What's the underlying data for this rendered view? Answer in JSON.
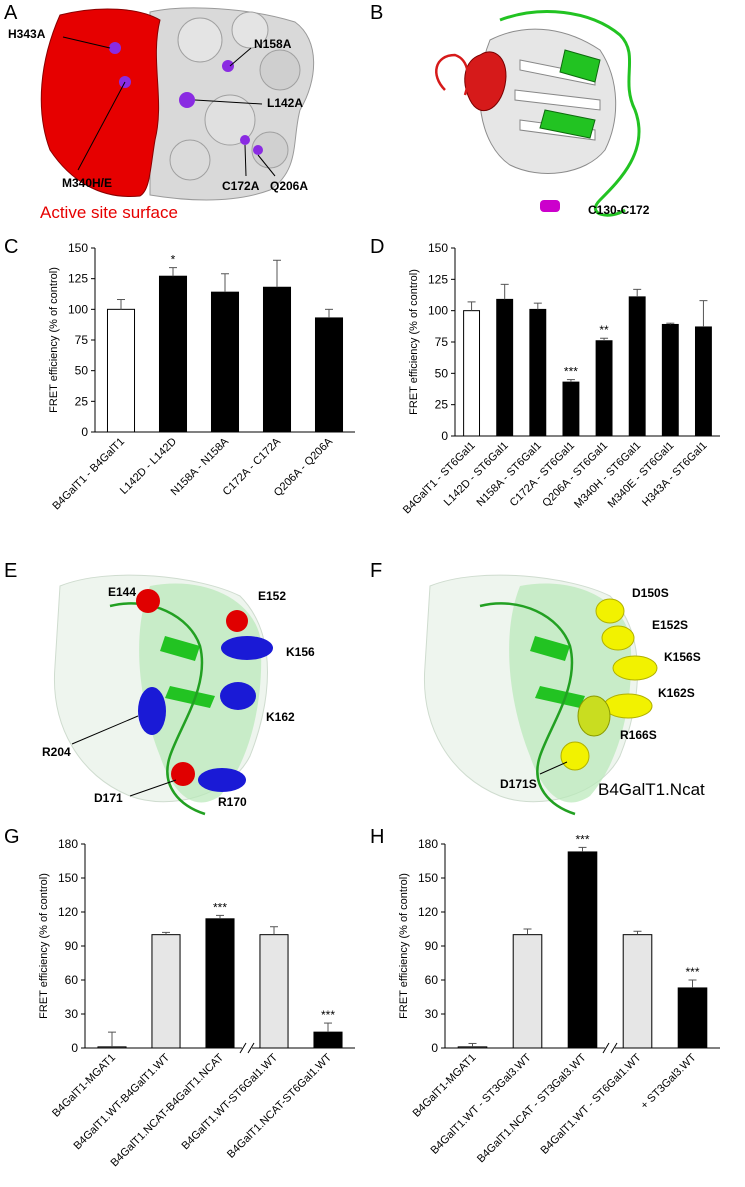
{
  "panels": {
    "A": {
      "letter": "A",
      "labels": [
        "H343A",
        "N158A",
        "L142A",
        "M340H/E",
        "C172A",
        "Q206A"
      ],
      "caption": "Active site surface",
      "colors": {
        "active": "#e60000",
        "surface": "#d8d8d8",
        "mutation": "#8a2be2"
      }
    },
    "B": {
      "letter": "B",
      "labels": [
        "C130-C172"
      ],
      "colors": {
        "helix_red": "#d61a1a",
        "helix_green": "#22c322",
        "coil": "#c8c8c8",
        "disulfide": "#cc00cc"
      }
    },
    "E": {
      "letter": "E",
      "labels": [
        "E144",
        "E152",
        "K156",
        "K162",
        "R204",
        "D171",
        "R170"
      ],
      "colors": {
        "acidic": "#e00000",
        "basic": "#1a1ad6"
      }
    },
    "F": {
      "letter": "F",
      "labels": [
        "D150S",
        "E152S",
        "K156S",
        "K162S",
        "R166S",
        "D171S"
      ],
      "title": "B4GalT1.Ncat",
      "colors": {
        "serine": "#f2f200"
      }
    }
  },
  "chart_data": [
    {
      "panel": "C",
      "type": "bar",
      "ylabel": "FRET efficiency (% of control)",
      "ylim": [
        0,
        150
      ],
      "yticks": [
        0,
        25,
        50,
        75,
        100,
        125,
        150
      ],
      "categories": [
        "B4GalT1 - B4GalT1",
        "L142D - L142D",
        "N158A - N158A",
        "C172A - C172A",
        "Q206A - Q206A"
      ],
      "values": [
        100,
        127,
        114,
        118,
        93
      ],
      "errors": [
        8,
        7,
        15,
        22,
        7
      ],
      "fills": [
        "white",
        "black",
        "black",
        "black",
        "black"
      ],
      "significance": [
        "",
        "*",
        "",
        "",
        ""
      ]
    },
    {
      "panel": "D",
      "type": "bar",
      "ylabel": "FRET efficiency (% of control)",
      "ylim": [
        0,
        150
      ],
      "yticks": [
        0,
        25,
        50,
        75,
        100,
        125,
        150
      ],
      "categories": [
        "B4GalT1 - ST6Gal1",
        "L142D - ST6Gal1",
        "N158A - ST6Gal1",
        "C172A - ST6Gal1",
        "Q206A - ST6Gal1",
        "M340H - ST6Gal1",
        "M340E - ST6Gal1",
        "H343A - ST6Gal1"
      ],
      "values": [
        100,
        109,
        101,
        43,
        76,
        111,
        89,
        87
      ],
      "errors": [
        7,
        12,
        5,
        2,
        2,
        6,
        1,
        21
      ],
      "fills": [
        "white",
        "black",
        "black",
        "black",
        "black",
        "black",
        "black",
        "black"
      ],
      "significance": [
        "",
        "",
        "",
        "***",
        "**",
        "",
        "",
        ""
      ]
    },
    {
      "panel": "G",
      "type": "bar",
      "ylabel": "FRET efficiency (% of control)",
      "ylim": [
        0,
        180
      ],
      "yticks": [
        0,
        30,
        60,
        90,
        120,
        150,
        180
      ],
      "categories": [
        "B4GalT1-MGAT1",
        "B4GalT1.WT-B4GalT1.WT",
        "B4GalT1.NCAT-B4GalT1.NCAT",
        "B4GalT1.WT-ST6Gal1.WT",
        "B4GalT1.NCAT-ST6Gal1.WT"
      ],
      "values": [
        1,
        100,
        114,
        100,
        14
      ],
      "errors": [
        13,
        2,
        3,
        7,
        8
      ],
      "fills": [
        "lightgray",
        "lightgray",
        "black",
        "lightgray",
        "black"
      ],
      "significance": [
        "",
        "",
        "***",
        "",
        "***"
      ],
      "axis_break_after": 2
    },
    {
      "panel": "H",
      "type": "bar",
      "ylabel": "FRET efficiency (% of control)",
      "ylim": [
        0,
        180
      ],
      "yticks": [
        0,
        30,
        60,
        90,
        120,
        150,
        180
      ],
      "categories": [
        "B4GalT1-MGAT1",
        "B4GalT1.WT - ST3Gal3.WT",
        "B4GalT1.NCAT - ST3Gal3.WT",
        "B4GalT1.WT - ST6Gal1.WT",
        "+ ST3Gal3.WT"
      ],
      "values": [
        1,
        100,
        173,
        100,
        53
      ],
      "errors": [
        3,
        5,
        4,
        3,
        7
      ],
      "fills": [
        "lightgray",
        "lightgray",
        "black",
        "lightgray",
        "black"
      ],
      "significance": [
        "",
        "",
        "***",
        "",
        "***"
      ],
      "axis_break_after": 2
    }
  ]
}
